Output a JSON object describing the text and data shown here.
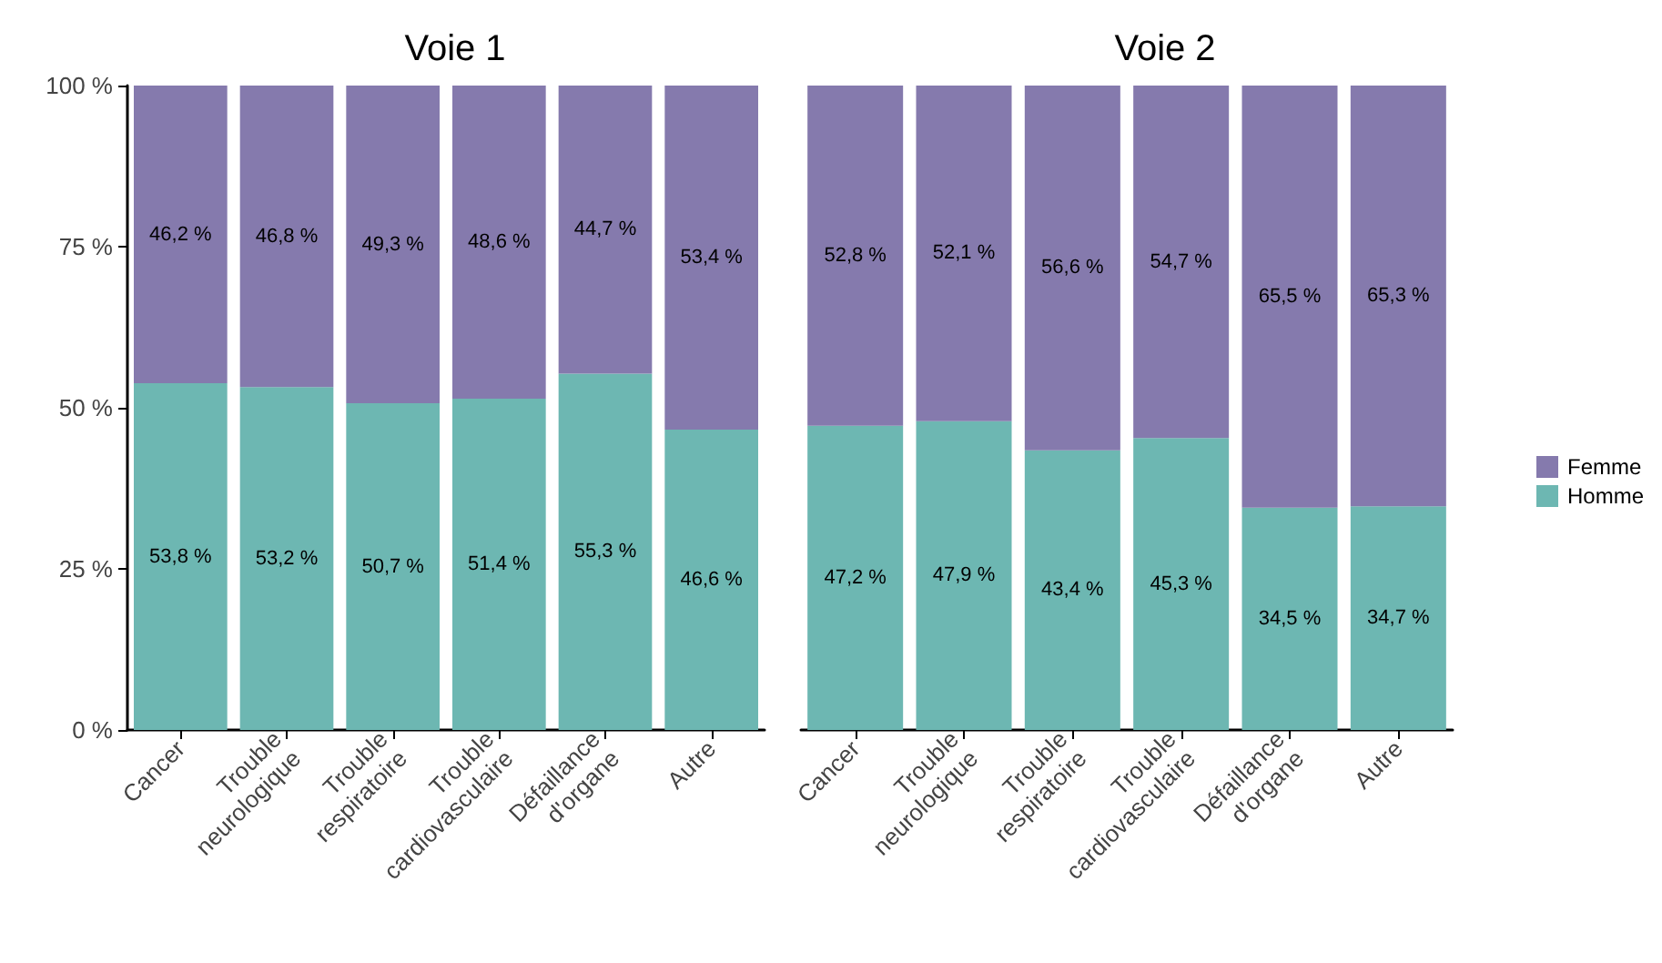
{
  "chart_data": [
    {
      "type": "bar",
      "title": "Voie 1",
      "stacked": true,
      "categories": [
        "Cancer",
        "Trouble neurologique",
        "Trouble respiratoire",
        "Trouble cardiovasculaire",
        "Défaillance d'organe",
        "Autre"
      ],
      "series": [
        {
          "color": "#6db7b2",
          "values": [
            53.8,
            53.2,
            50.7,
            51.4,
            55.3,
            46.6
          ],
          "value_labels": [
            "53,8 %",
            "53,2 %",
            "50,7 %",
            "51,4 %",
            "55,3 %",
            "46,6 %"
          ]
        },
        {
          "color": "#857aad",
          "values": [
            46.2,
            46.8,
            49.3,
            48.6,
            44.7,
            53.4
          ],
          "value_labels": [
            "46,2 %",
            "46,8 %",
            "49,3 %",
            "48,6 %",
            "44,7 %",
            "53,4 %"
          ]
        }
      ],
      "ylim": [
        0,
        100
      ],
      "yticks": [
        {
          "value": 0,
          "label": "0 %"
        },
        {
          "value": 25,
          "label": "25 %"
        },
        {
          "value": 50,
          "label": "50 %"
        },
        {
          "value": 75,
          "label": "75 %"
        },
        {
          "value": 100,
          "label": "100 %"
        }
      ],
      "grid": false,
      "legend": false
    },
    {
      "type": "bar",
      "title": "Voie 2",
      "stacked": true,
      "categories": [
        "Cancer",
        "Trouble neurologique",
        "Trouble respiratoire",
        "Trouble cardiovasculaire",
        "Défaillance d'organe",
        "Autre"
      ],
      "series": [
        {
          "name": "Homme",
          "color": "#6db7b2",
          "values": [
            47.2,
            47.9,
            43.4,
            45.3,
            34.5,
            34.7
          ],
          "value_labels": [
            "47,2 %",
            "47,9 %",
            "43,4 %",
            "45,3 %",
            "34,5 %",
            "34,7 %"
          ]
        },
        {
          "name": "Femme",
          "color": "#857aad",
          "values": [
            52.8,
            52.1,
            56.6,
            54.7,
            65.5,
            65.3
          ],
          "value_labels": [
            "52,8 %",
            "52,1 %",
            "56,6 %",
            "54,7 %",
            "65,5 %",
            "65,3 %"
          ]
        }
      ],
      "ylim": [
        0,
        100
      ],
      "tick_labels": "x",
      "grid": false,
      "legend": "right"
    }
  ]
}
